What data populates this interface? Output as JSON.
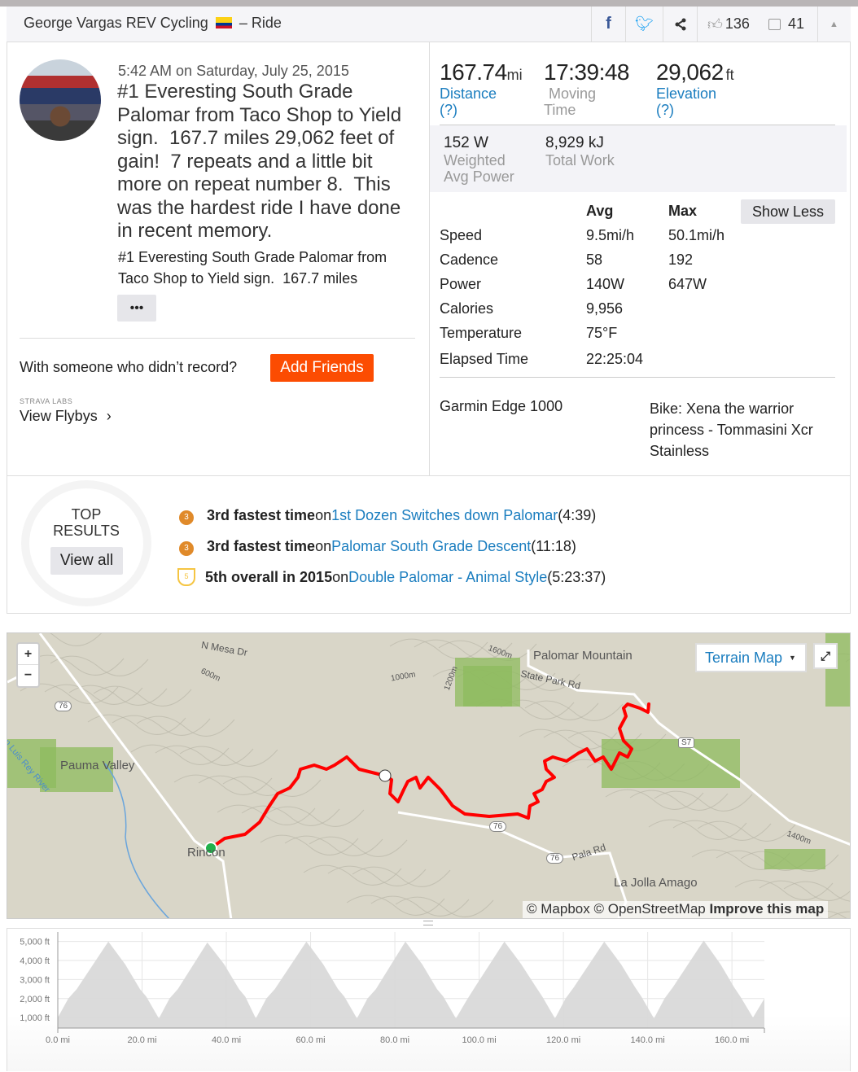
{
  "header": {
    "athlete": "George Vargas REV Cycling",
    "flag_icon": "colombia-flag-icon",
    "separator": "– Ride",
    "kudos_count": "136",
    "comment_count": "41"
  },
  "activity": {
    "date": "5:42 AM on Saturday, July 25, 2015",
    "title": "#1 Everesting South Grade Palomar from Taco Shop to Yield sign.  167.7 miles 29,062 feet of gain!  7 repeats and a little bit more on repeat number 8.  This was the hardest ride I have done in recent memory.",
    "description": "#1 Everesting South Grade Palomar from Taco Shop to Yield sign.  167.7 miles",
    "more_label": "•••",
    "with_someone": "With someone who didn’t record?",
    "add_friends": "Add Friends",
    "labs_label": "STRAVA LABS",
    "flybys": "View Flybys",
    "flybys_chevron": "›"
  },
  "stats": {
    "distance": {
      "value": "167.74",
      "unit": "mi",
      "label": "Distance",
      "help": "(?)"
    },
    "moving_time": {
      "value": "17:39:48",
      "label1": "Moving",
      "label2": "Time"
    },
    "elevation": {
      "value": "29,062",
      "unit": "ft",
      "label": "Elevation",
      "help": "(?)"
    },
    "weighted_power": {
      "value": "152",
      "unit": "W",
      "label1": "Weighted",
      "label2": "Avg Power"
    },
    "total_work": {
      "value": "8,929",
      "unit": "kJ",
      "label": "Total Work"
    },
    "col_avg": "Avg",
    "col_max": "Max",
    "show_less": "Show Less",
    "rows": [
      {
        "label": "Speed",
        "avg": "9.5mi/h",
        "max": "50.1mi/h"
      },
      {
        "label": "Cadence",
        "avg": "58",
        "max": "192"
      },
      {
        "label": "Power",
        "avg": "140W",
        "max": "647W"
      },
      {
        "label": "Calories",
        "avg": "9,956",
        "max": ""
      },
      {
        "label": "Temperature",
        "avg": "75°F",
        "max": ""
      },
      {
        "label": "Elapsed Time",
        "avg": "22:25:04",
        "max": ""
      }
    ],
    "device": "Garmin Edge 1000",
    "bike": "Bike: Xena the warrior princess - Tommasini Xcr Stainless"
  },
  "top_results": {
    "title1": "TOP",
    "title2": "RESULTS",
    "view_all": "View all",
    "items": [
      {
        "icon": "bronze-medal-icon",
        "badge": "3",
        "rank": "3rd fastest time",
        "on": "on",
        "segment": "1st Dozen Switches down Palomar",
        "time": "(4:39)"
      },
      {
        "icon": "bronze-medal-icon",
        "badge": "3",
        "rank": "3rd fastest time",
        "on": "on",
        "segment": "Palomar South Grade Descent",
        "time": "(11:18)"
      },
      {
        "icon": "trophy-icon",
        "badge": "5",
        "rank": "5th overall in 2015",
        "on": "on",
        "segment": "Double Palomar - Animal Style",
        "time": "(5:23:37)"
      }
    ]
  },
  "map": {
    "zoom_in": "+",
    "zoom_out": "−",
    "layer": "Terrain Map",
    "attribution_mapbox": "© Mapbox",
    "attribution_osm": "© OpenStreetMap",
    "improve": "Improve this map",
    "labels": {
      "n_mesa": "N Mesa Dr",
      "pauma": "Pauma Valley",
      "rincon": "Rincon",
      "palomar": "Palomar Mountain",
      "state_park": "State Park Rd",
      "la_jolla": "La Jolla Amago",
      "pala_rd": "Pala Rd",
      "river": "San Luis Rey River",
      "hwy76": "76",
      "s7": "S7",
      "m600": "600m",
      "m1000": "1000m",
      "m1200": "1200m",
      "m1400": "1400m",
      "m1600": "1600m"
    },
    "colors": {
      "route": "#ff0000",
      "start": "#22b14c",
      "terrain": "#d9d6c8",
      "forest": "#8dbb5d"
    }
  },
  "chart_data": {
    "type": "area",
    "title": "",
    "xlabel": "",
    "ylabel": "",
    "xlim": [
      0,
      167.7
    ],
    "ylim": [
      450,
      5500
    ],
    "x_ticks": [
      "0.0 mi",
      "20.0 mi",
      "40.0 mi",
      "60.0 mi",
      "80.0 mi",
      "100.0 mi",
      "120.0 mi",
      "140.0 mi",
      "160.0 mi"
    ],
    "x_tick_values": [
      0,
      20,
      40,
      60,
      80,
      100,
      120,
      140,
      160
    ],
    "y_ticks": [
      "5,000 ft",
      "4,000 ft",
      "3,000 ft",
      "2,000 ft",
      "1,000 ft"
    ],
    "y_tick_values": [
      5000,
      4000,
      3000,
      2000,
      1000
    ],
    "grid": true,
    "fill_color": "#d9d9d9",
    "x": [
      0,
      2.5,
      4.5,
      12,
      16,
      19.5,
      21,
      24,
      26.5,
      28.5,
      35.5,
      39.5,
      43,
      44.5,
      47,
      49.5,
      51.5,
      59,
      63,
      66.5,
      68,
      71,
      73.5,
      75.5,
      82.5,
      86.5,
      90,
      91.5,
      94.5,
      97,
      99,
      106,
      110,
      113.5,
      115,
      118,
      120.5,
      122.5,
      129.7,
      133.7,
      137,
      138.5,
      141.5,
      144,
      146,
      153.3,
      157.3,
      160.5,
      162,
      165,
      167.7
    ],
    "y": [
      1000,
      2000,
      2500,
      5000,
      3800,
      2500,
      2100,
      950,
      2000,
      2500,
      4950,
      3800,
      2500,
      2100,
      950,
      2000,
      2500,
      5000,
      3800,
      2500,
      2100,
      950,
      2000,
      2500,
      5000,
      3800,
      2500,
      2100,
      950,
      1900,
      2600,
      5000,
      3800,
      2600,
      2100,
      950,
      2000,
      2600,
      5000,
      3800,
      2600,
      2100,
      950,
      2000,
      2600,
      5050,
      3800,
      2600,
      2100,
      1000,
      2000
    ]
  }
}
